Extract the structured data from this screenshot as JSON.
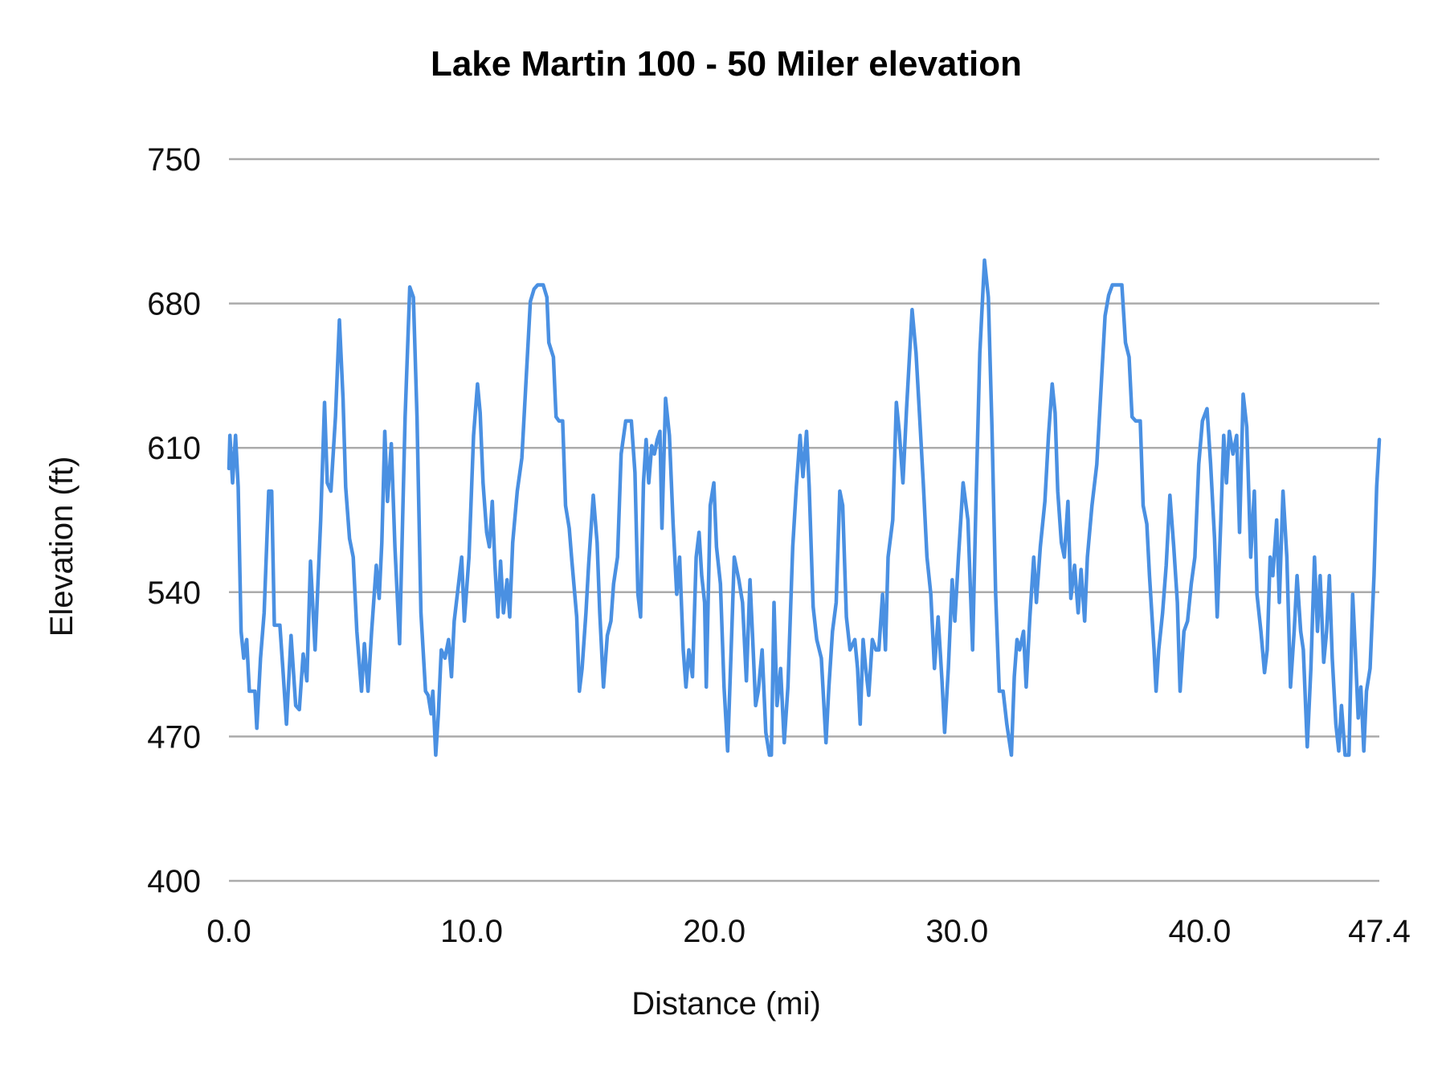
{
  "chart_data": {
    "type": "line",
    "title": "Lake Martin 100 - 50 Miler elevation",
    "xlabel": "Distance (mi)",
    "ylabel": "Elevation (ft)",
    "xlim": [
      0,
      47.4
    ],
    "ylim": [
      400,
      750
    ],
    "x_ticks": [
      "0.0",
      "10.0",
      "20.0",
      "30.0",
      "40.0",
      "47.4"
    ],
    "x_tick_values": [
      0,
      10,
      20,
      30,
      40,
      47.4
    ],
    "y_ticks": [
      "750",
      "680",
      "610",
      "540",
      "470",
      "400"
    ],
    "y_tick_values": [
      750,
      680,
      610,
      540,
      470,
      400
    ],
    "grid": "horizontal",
    "legend": "none",
    "line_color": "#4a90e2",
    "grid_color": "#ababab",
    "series": [
      {
        "distance_mi": [
          0,
          0.04,
          0.15,
          0.27,
          0.38,
          0.5,
          0.61,
          0.73,
          0.84,
          1.07,
          1.15,
          1.3,
          1.45,
          1.64,
          1.76,
          1.87,
          2.1,
          2.22,
          2.37,
          2.56,
          2.75,
          2.9,
          3.06,
          3.21,
          3.36,
          3.55,
          3.78,
          3.94,
          4.05,
          4.2,
          4.39,
          4.55,
          4.7,
          4.81,
          4.97,
          5.12,
          5.27,
          5.46,
          5.58,
          5.73,
          5.88,
          6.07,
          6.19,
          6.3,
          6.42,
          6.53,
          6.69,
          6.84,
          7.03,
          7.26,
          7.45,
          7.6,
          7.75,
          7.91,
          8.1,
          8.21,
          8.33,
          8.4,
          8.52,
          8.63,
          8.75,
          8.9,
          9.05,
          9.17,
          9.28,
          9.44,
          9.59,
          9.7,
          9.89,
          10.08,
          10.24,
          10.35,
          10.47,
          10.62,
          10.73,
          10.85,
          10.96,
          11.08,
          11.19,
          11.31,
          11.46,
          11.57,
          11.69,
          11.88,
          12.07,
          12.22,
          12.42,
          12.57,
          12.72,
          12.95,
          13.1,
          13.18,
          13.37,
          13.48,
          13.6,
          13.75,
          13.87,
          14.02,
          14.13,
          14.33,
          14.44,
          14.55,
          14.71,
          14.82,
          15.01,
          15.17,
          15.28,
          15.43,
          15.59,
          15.74,
          15.85,
          16.01,
          16.16,
          16.35,
          16.58,
          16.73,
          16.85,
          16.96,
          17.08,
          17.19,
          17.3,
          17.42,
          17.53,
          17.65,
          17.76,
          17.84,
          17.99,
          18.15,
          18.3,
          18.45,
          18.57,
          18.72,
          18.83,
          18.95,
          19.1,
          19.25,
          19.37,
          19.48,
          19.6,
          19.67,
          19.83,
          19.98,
          20.09,
          20.25,
          20.4,
          20.55,
          20.7,
          20.82,
          21.01,
          21.16,
          21.32,
          21.47,
          21.58,
          21.7,
          21.81,
          21.97,
          22.12,
          22.27,
          22.35,
          22.46,
          22.58,
          22.73,
          22.88,
          23.03,
          23.23,
          23.38,
          23.53,
          23.65,
          23.8,
          23.91,
          24.07,
          24.22,
          24.41,
          24.6,
          24.72,
          24.87,
          25.02,
          25.17,
          25.29,
          25.44,
          25.59,
          25.79,
          25.9,
          26.01,
          26.13,
          26.24,
          26.36,
          26.51,
          26.66,
          26.78,
          26.93,
          27.05,
          27.16,
          27.35,
          27.5,
          27.62,
          27.77,
          27.92,
          28.15,
          28.31,
          28.46,
          28.61,
          28.76,
          28.92,
          29.07,
          29.22,
          29.38,
          29.49,
          29.64,
          29.8,
          29.91,
          30.06,
          30.25,
          30.45,
          30.64,
          30.79,
          30.94,
          31.13,
          31.29,
          31.44,
          31.59,
          31.74,
          31.9,
          32.05,
          32.24,
          32.36,
          32.47,
          32.58,
          32.74,
          32.85,
          33.0,
          33.16,
          33.27,
          33.43,
          33.62,
          33.77,
          33.92,
          34.04,
          34.15,
          34.3,
          34.42,
          34.57,
          34.69,
          34.84,
          34.99,
          35.11,
          35.26,
          35.37,
          35.56,
          35.76,
          35.91,
          36.1,
          36.25,
          36.4,
          36.79,
          36.94,
          37.09,
          37.21,
          37.36,
          37.55,
          37.67,
          37.82,
          37.93,
          38.12,
          38.2,
          38.31,
          38.47,
          38.62,
          38.77,
          38.93,
          39.08,
          39.19,
          39.35,
          39.5,
          39.65,
          39.8,
          39.96,
          40.11,
          40.3,
          40.45,
          40.61,
          40.72,
          40.87,
          40.99,
          41.1,
          41.22,
          41.37,
          41.52,
          41.64,
          41.79,
          41.94,
          42.1,
          42.25,
          42.36,
          42.52,
          42.67,
          42.78,
          42.9,
          43.01,
          43.17,
          43.28,
          43.43,
          43.59,
          43.74,
          43.89,
          44.01,
          44.16,
          44.27,
          44.43,
          44.58,
          44.73,
          44.85,
          44.96,
          45.11,
          45.23,
          45.34,
          45.46,
          45.61,
          45.73,
          45.84,
          45.99,
          46.15,
          46.3,
          46.41,
          46.53,
          46.64,
          46.76,
          46.87,
          47.02,
          47.18,
          47.29,
          47.4
        ],
        "elevation_ft": [
          600,
          616,
          593,
          616,
          591,
          521,
          508,
          517,
          492,
          492,
          474,
          508,
          530,
          589,
          589,
          524,
          524,
          503,
          476,
          519,
          485,
          483,
          510,
          497,
          555,
          512,
          575,
          632,
          593,
          589,
          625,
          672,
          634,
          591,
          566,
          557,
          521,
          492,
          515,
          492,
          521,
          553,
          537,
          564,
          618,
          584,
          612,
          562,
          515,
          625,
          688,
          683,
          625,
          530,
          492,
          490,
          481,
          492,
          461,
          481,
          512,
          508,
          517,
          499,
          526,
          542,
          557,
          526,
          557,
          616,
          641,
          627,
          593,
          569,
          562,
          584,
          553,
          528,
          555,
          530,
          546,
          528,
          564,
          589,
          605,
          638,
          681,
          687,
          689,
          689,
          683,
          661,
          654,
          625,
          623,
          623,
          582,
          571,
          555,
          528,
          492,
          503,
          530,
          553,
          587,
          564,
          530,
          494,
          519,
          526,
          544,
          557,
          607,
          623,
          623,
          598,
          539,
          528,
          593,
          614,
          593,
          611,
          607,
          614,
          618,
          571,
          634,
          616,
          573,
          539,
          557,
          512,
          494,
          512,
          499,
          557,
          569,
          548,
          535,
          494,
          582,
          593,
          562,
          544,
          494,
          463,
          515,
          557,
          546,
          535,
          497,
          546,
          517,
          485,
          492,
          512,
          472,
          461,
          461,
          535,
          485,
          503,
          467,
          494,
          562,
          591,
          616,
          596,
          618,
          591,
          533,
          517,
          508,
          467,
          494,
          521,
          535,
          589,
          582,
          528,
          512,
          517,
          503,
          476,
          517,
          503,
          490,
          517,
          512,
          512,
          539,
          512,
          557,
          575,
          632,
          618,
          593,
          629,
          677,
          656,
          625,
          593,
          557,
          539,
          503,
          528,
          497,
          472,
          503,
          546,
          526,
          557,
          593,
          575,
          512,
          589,
          656,
          701,
          683,
          620,
          539,
          492,
          492,
          476,
          461,
          499,
          517,
          512,
          521,
          494,
          528,
          557,
          535,
          562,
          584,
          616,
          641,
          627,
          589,
          564,
          557,
          584,
          537,
          553,
          530,
          551,
          526,
          557,
          582,
          602,
          634,
          674,
          684,
          689,
          689,
          661,
          654,
          625,
          623,
          623,
          582,
          573,
          548,
          512,
          492,
          512,
          530,
          553,
          587,
          562,
          535,
          492,
          521,
          526,
          544,
          557,
          602,
          623,
          629,
          602,
          566,
          528,
          575,
          616,
          593,
          618,
          607,
          616,
          569,
          636,
          620,
          557,
          589,
          539,
          521,
          501,
          512,
          557,
          548,
          575,
          535,
          589,
          557,
          494,
          521,
          548,
          521,
          512,
          465,
          503,
          557,
          521,
          548,
          506,
          521,
          548,
          508,
          476,
          463,
          485,
          461,
          461,
          539,
          512,
          479,
          494,
          463,
          492,
          503,
          548,
          591,
          614
        ]
      }
    ]
  }
}
